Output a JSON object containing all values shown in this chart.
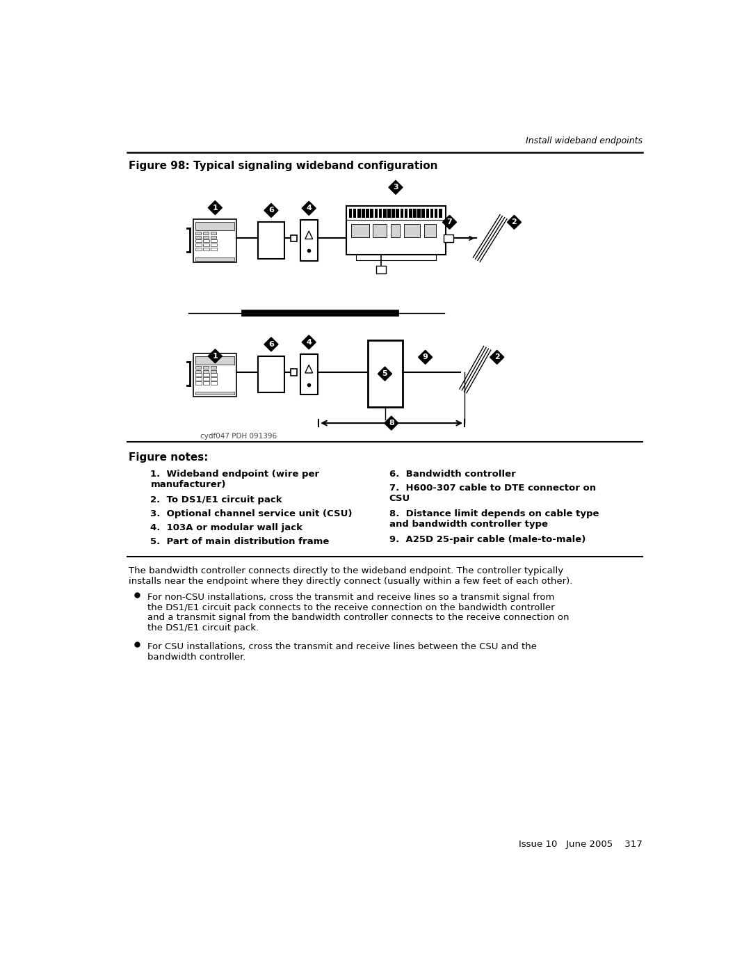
{
  "page_title": "Install wideband endpoints",
  "figure_title": "Figure 98: Typical signaling wideband configuration",
  "figure_notes_title": "Figure notes:",
  "notes_left": [
    "1.  Wideband endpoint (wire per\n    manufacturer)",
    "2.  To DS1/E1 circuit pack",
    "3.  Optional channel service unit (CSU)",
    "4.  103A or modular wall jack",
    "5.  Part of main distribution frame"
  ],
  "notes_right": [
    "6.  Bandwidth controller",
    "7.  H600-307 cable to DTE connector on\n    CSU",
    "8.  Distance limit depends on cable type\n    and bandwidth controller type",
    "9.  A25D 25-pair cable (male-to-male)"
  ],
  "body_para1": "The bandwidth controller connects directly to the wideband endpoint. The controller typically\ninstalls near the endpoint where they directly connect (usually within a few feet of each other).",
  "body_bullet1_lines": [
    "For non-CSU installations, cross the transmit and receive lines so a transmit signal from",
    "the DS1/E1 circuit pack connects to the receive connection on the bandwidth controller",
    "and a transmit signal from the bandwidth controller connects to the receive connection on",
    "the DS1/E1 circuit pack."
  ],
  "body_bullet2_lines": [
    "For CSU installations, cross the transmit and receive lines between the CSU and the",
    "bandwidth controller."
  ],
  "footer": "Issue 10   June 2005    317",
  "watermark": "cydf047 PDH 091396",
  "bg_color": "#ffffff",
  "text_color": "#000000"
}
